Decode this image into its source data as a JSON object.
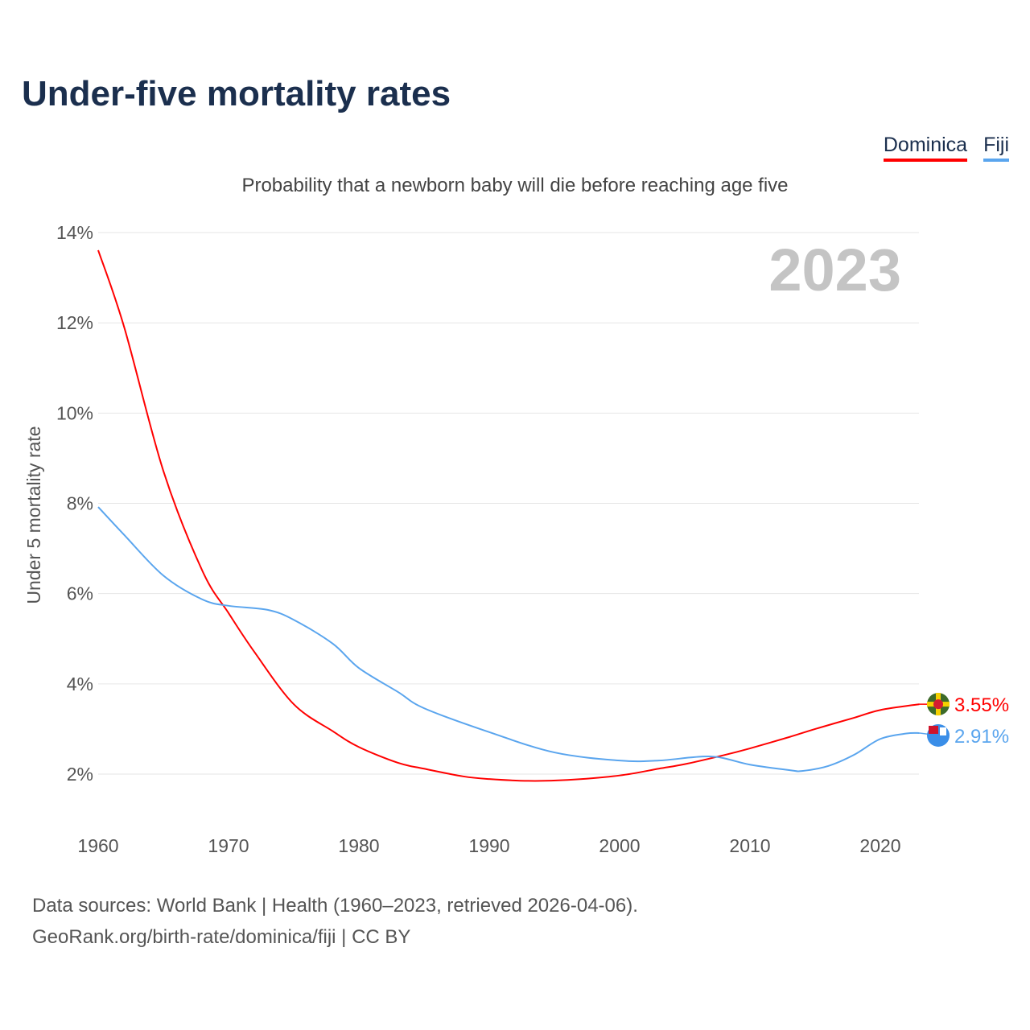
{
  "title": "Under-five mortality rates",
  "subtitle": "Probability that a newborn baby will die before reaching age five",
  "footer": {
    "line1": "Data sources: World Bank | Health (1960–2023, retrieved 2026-04-06).",
    "line2": "GeoRank.org/birth-rate/dominica/fiji | CC BY"
  },
  "chart_data": {
    "type": "line",
    "title": "Under-five mortality rates",
    "ylabel": "Under 5 mortality rate",
    "xlabel": "",
    "year_label": "2023",
    "xlim": [
      1960,
      2023
    ],
    "ylim": [
      1,
      14
    ],
    "xticks": [
      1960,
      1970,
      1980,
      1990,
      2000,
      2010,
      2020
    ],
    "yticks": [
      {
        "v": 2,
        "label": "2%"
      },
      {
        "v": 4,
        "label": "4%"
      },
      {
        "v": 6,
        "label": "6%"
      },
      {
        "v": 8,
        "label": "8%"
      },
      {
        "v": 10,
        "label": "10%"
      },
      {
        "v": 12,
        "label": "12%"
      },
      {
        "v": 14,
        "label": "14%"
      }
    ],
    "legend_position": "top-right",
    "series": [
      {
        "name": "Dominica",
        "color": "#ff0000",
        "end_label": "3.55%",
        "flag": "dominica-flag-icon",
        "x": [
          1960,
          1962,
          1965,
          1968,
          1970,
          1972,
          1975,
          1978,
          1980,
          1983,
          1985,
          1988,
          1990,
          1993,
          1996,
          2000,
          2003,
          2005,
          2008,
          2010,
          2013,
          2015,
          2018,
          2020,
          2023
        ],
        "y": [
          13.61,
          11.9,
          8.72,
          6.5,
          5.57,
          4.7,
          3.55,
          2.95,
          2.6,
          2.25,
          2.12,
          1.95,
          1.89,
          1.85,
          1.87,
          1.97,
          2.12,
          2.22,
          2.42,
          2.57,
          2.82,
          3.0,
          3.25,
          3.42,
          3.55
        ]
      },
      {
        "name": "Fiji",
        "color": "#5aa5ee",
        "end_label": "2.91%",
        "flag": "fiji-flag-icon",
        "x": [
          1960,
          1962,
          1965,
          1968,
          1970,
          1973,
          1975,
          1978,
          1980,
          1983,
          1985,
          1990,
          1995,
          2000,
          2003,
          2007,
          2010,
          2013,
          2014,
          2016,
          2018,
          2020,
          2022,
          2023
        ],
        "y": [
          7.92,
          7.3,
          6.4,
          5.87,
          5.73,
          5.64,
          5.42,
          4.89,
          4.35,
          3.82,
          3.46,
          2.93,
          2.48,
          2.3,
          2.3,
          2.39,
          2.21,
          2.09,
          2.07,
          2.18,
          2.43,
          2.78,
          2.9,
          2.91
        ]
      }
    ]
  }
}
